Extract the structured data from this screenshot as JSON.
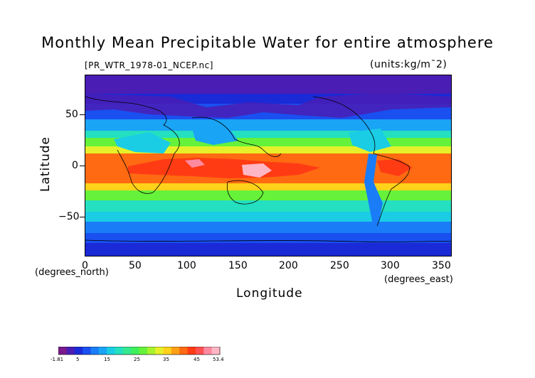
{
  "title": "Monthly Mean Precipitable Water for entire atmosphere",
  "source_label": "[PR_WTR_1978-01_NCEP.nc]",
  "units_label": "(units:kg/m¯2)",
  "axes": {
    "x_label": "Longitude",
    "y_label": "Latitude",
    "x_unit_label": "(degrees_east)",
    "y_unit_label": "(degrees_north)",
    "x_ticks": [
      "0",
      "50",
      "100",
      "150",
      "200",
      "250",
      "300",
      "350"
    ],
    "y_ticks": [
      "50",
      "0",
      "−50"
    ]
  },
  "colorbar": {
    "tick_labels": [
      "-1.81",
      "5",
      "15",
      "25",
      "35",
      "45",
      "53.4"
    ],
    "colors": [
      "#7a1a8c",
      "#4a1db5",
      "#1a2ad6",
      "#1a4ff0",
      "#1a7cf7",
      "#1aa4f5",
      "#1acde5",
      "#24e0c0",
      "#35e890",
      "#3ef05a",
      "#66f23a",
      "#a8f22e",
      "#e6f02a",
      "#ffd21a",
      "#ffa015",
      "#ff6a12",
      "#ff3b14",
      "#ff5050",
      "#ff8aa0",
      "#ffb6c4"
    ]
  },
  "map_colors": {
    "very_low": "#4a1db5",
    "low": "#1a2ad6",
    "low_mid": "#1a7cf7",
    "mid_low": "#1acde5",
    "mid": "#3ef05a",
    "mid_high": "#e6f02a",
    "high": "#ff6a12",
    "very_high": "#ff3b14",
    "peak": "#ffb6c4",
    "coast": "#000000"
  }
}
